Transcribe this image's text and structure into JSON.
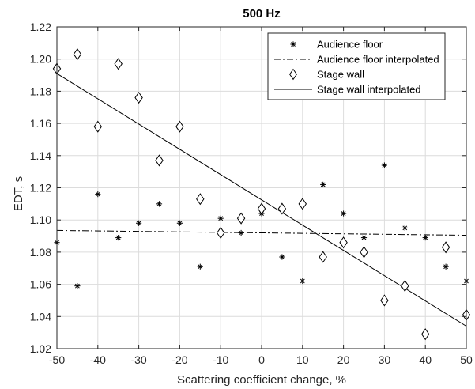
{
  "chart_data": {
    "type": "scatter",
    "title": "500 Hz",
    "xlabel": "Scattering coefficient change, %",
    "ylabel": "EDT, s",
    "xlim": [
      -50,
      50
    ],
    "ylim": [
      1.02,
      1.22
    ],
    "xticks": [
      "-50",
      "-40",
      "-30",
      "-20",
      "-10",
      "0",
      "10",
      "20",
      "30",
      "40",
      "50"
    ],
    "yticks": [
      "1.02",
      "1.04",
      "1.06",
      "1.08",
      "1.10",
      "1.12",
      "1.14",
      "1.16",
      "1.18",
      "1.20",
      "1.22"
    ],
    "grid": true,
    "legend_position": "top-right",
    "series": [
      {
        "name": "Audience floor",
        "kind": "scatter",
        "marker": "asterisk",
        "x": [
          -50,
          -45,
          -40,
          -35,
          -30,
          -25,
          -20,
          -15,
          -10,
          -5,
          0,
          5,
          10,
          15,
          20,
          25,
          30,
          35,
          40,
          45,
          50
        ],
        "y": [
          1.086,
          1.059,
          1.116,
          1.089,
          1.098,
          1.11,
          1.098,
          1.071,
          1.101,
          1.092,
          1.104,
          1.077,
          1.062,
          1.122,
          1.104,
          1.089,
          1.134,
          1.095,
          1.089,
          1.071,
          1.062
        ]
      },
      {
        "name": "Audience floor interpolated",
        "kind": "line",
        "style": "dashdot",
        "x": [
          -50,
          50
        ],
        "y": [
          1.0935,
          1.0905
        ]
      },
      {
        "name": "Stage wall",
        "kind": "scatter",
        "marker": "diamond",
        "x": [
          -50,
          -45,
          -40,
          -35,
          -30,
          -25,
          -20,
          -15,
          -10,
          -5,
          0,
          5,
          10,
          15,
          20,
          25,
          30,
          35,
          40,
          45,
          50
        ],
        "y": [
          1.194,
          1.203,
          1.158,
          1.197,
          1.176,
          1.137,
          1.158,
          1.113,
          1.092,
          1.101,
          1.107,
          1.107,
          1.11,
          1.077,
          1.086,
          1.08,
          1.05,
          1.059,
          1.029,
          1.083,
          1.041
        ]
      },
      {
        "name": "Stage wall interpolated",
        "kind": "line",
        "style": "solid",
        "x": [
          -50,
          50
        ],
        "y": [
          1.191,
          1.034
        ]
      }
    ]
  }
}
